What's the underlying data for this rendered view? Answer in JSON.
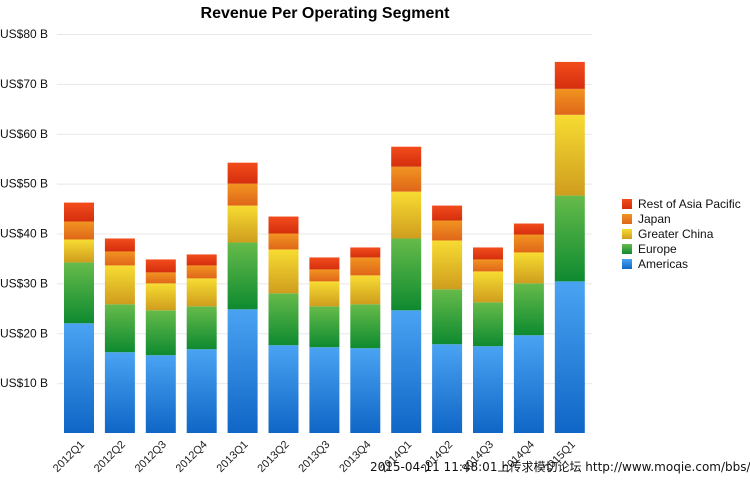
{
  "chart_data": {
    "type": "bar",
    "stacked": true,
    "title": "Revenue Per Operating Segment",
    "xlabel": "",
    "ylabel": "",
    "ylim": [
      0,
      80
    ],
    "y_ticks": [
      {
        "value": 10,
        "label": "US$10 B"
      },
      {
        "value": 20,
        "label": "US$20 B"
      },
      {
        "value": 30,
        "label": "US$30 B"
      },
      {
        "value": 40,
        "label": "US$40 B"
      },
      {
        "value": 50,
        "label": "US$50 B"
      },
      {
        "value": 60,
        "label": "US$60 B"
      },
      {
        "value": 70,
        "label": "US$70 B"
      },
      {
        "value": 80,
        "label": "US$80 B"
      }
    ],
    "grid": true,
    "legend_position": "right",
    "categories": [
      "2012Q1",
      "2012Q2",
      "2012Q3",
      "2012Q4",
      "2013Q1",
      "2013Q2",
      "2013Q3",
      "2013Q4",
      "2014Q1",
      "2014Q2",
      "2014Q3",
      "2014Q4",
      "2015Q1"
    ],
    "series": [
      {
        "name": "Americas",
        "color_top": "#4aa3f2",
        "color_bottom": "#0f66c6",
        "values": [
          22.0,
          16.2,
          15.6,
          16.8,
          24.8,
          17.6,
          17.2,
          17.0,
          24.6,
          17.8,
          17.4,
          19.6,
          30.4
        ]
      },
      {
        "name": "Europe",
        "color_top": "#66bb4a",
        "color_bottom": "#0e8a30",
        "values": [
          12.2,
          9.6,
          9.0,
          8.6,
          13.4,
          10.4,
          8.2,
          8.8,
          14.4,
          11.0,
          8.8,
          10.4,
          17.2
        ]
      },
      {
        "name": "Greater China",
        "color_top": "#f7dc32",
        "color_bottom": "#cf9d1e",
        "values": [
          4.6,
          7.8,
          5.4,
          5.6,
          7.4,
          8.8,
          5.0,
          5.8,
          9.4,
          9.8,
          6.2,
          6.2,
          16.2
        ]
      },
      {
        "name": "Japan",
        "color_top": "#f19420",
        "color_bottom": "#e0661a",
        "values": [
          3.6,
          2.8,
          2.2,
          2.6,
          4.4,
          3.2,
          2.4,
          3.6,
          5.0,
          4.0,
          2.4,
          3.6,
          5.2
        ]
      },
      {
        "name": "Rest of Asia Pacific",
        "color_top": "#f24c1c",
        "color_bottom": "#d42e0e",
        "values": [
          3.8,
          2.6,
          2.6,
          2.2,
          4.2,
          3.4,
          2.4,
          2.0,
          4.0,
          3.0,
          2.4,
          2.2,
          5.4
        ]
      }
    ],
    "legend_order": [
      "Rest of Asia Pacific",
      "Japan",
      "Greater China",
      "Europe",
      "Americas"
    ]
  },
  "watermark": "2015-04-11 11:48:01上传求模切论坛 http://www.moqie.com/bbs/"
}
